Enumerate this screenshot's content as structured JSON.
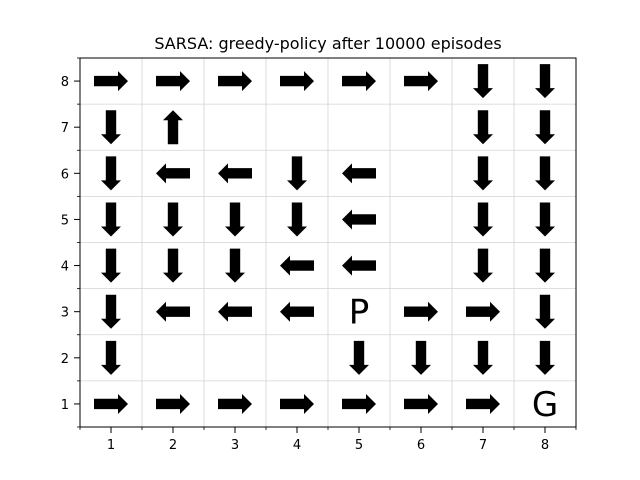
{
  "chart_data": {
    "type": "grid-policy",
    "title": "SARSA: greedy-policy after 10000 episodes",
    "xlabel": "",
    "ylabel": "",
    "x_ticks": [
      "1",
      "2",
      "3",
      "4",
      "5",
      "6",
      "7",
      "8"
    ],
    "y_ticks": [
      "1",
      "2",
      "3",
      "4",
      "5",
      "6",
      "7",
      "8"
    ],
    "xlim": [
      0.5,
      8.5
    ],
    "ylim": [
      0.5,
      8.5
    ],
    "grid": true,
    "arrows": [
      {
        "x": 1,
        "y": 8,
        "dir": "right"
      },
      {
        "x": 2,
        "y": 8,
        "dir": "right"
      },
      {
        "x": 3,
        "y": 8,
        "dir": "right"
      },
      {
        "x": 4,
        "y": 8,
        "dir": "right"
      },
      {
        "x": 5,
        "y": 8,
        "dir": "right"
      },
      {
        "x": 6,
        "y": 8,
        "dir": "right"
      },
      {
        "x": 7,
        "y": 8,
        "dir": "down"
      },
      {
        "x": 8,
        "y": 8,
        "dir": "down"
      },
      {
        "x": 1,
        "y": 7,
        "dir": "down"
      },
      {
        "x": 2,
        "y": 7,
        "dir": "up"
      },
      {
        "x": 7,
        "y": 7,
        "dir": "down"
      },
      {
        "x": 8,
        "y": 7,
        "dir": "down"
      },
      {
        "x": 1,
        "y": 6,
        "dir": "down"
      },
      {
        "x": 2,
        "y": 6,
        "dir": "left"
      },
      {
        "x": 3,
        "y": 6,
        "dir": "left"
      },
      {
        "x": 4,
        "y": 6,
        "dir": "down"
      },
      {
        "x": 5,
        "y": 6,
        "dir": "left"
      },
      {
        "x": 7,
        "y": 6,
        "dir": "down"
      },
      {
        "x": 8,
        "y": 6,
        "dir": "down"
      },
      {
        "x": 1,
        "y": 5,
        "dir": "down"
      },
      {
        "x": 2,
        "y": 5,
        "dir": "down"
      },
      {
        "x": 3,
        "y": 5,
        "dir": "down"
      },
      {
        "x": 4,
        "y": 5,
        "dir": "down"
      },
      {
        "x": 5,
        "y": 5,
        "dir": "left"
      },
      {
        "x": 7,
        "y": 5,
        "dir": "down"
      },
      {
        "x": 8,
        "y": 5,
        "dir": "down"
      },
      {
        "x": 1,
        "y": 4,
        "dir": "down"
      },
      {
        "x": 2,
        "y": 4,
        "dir": "down"
      },
      {
        "x": 3,
        "y": 4,
        "dir": "down"
      },
      {
        "x": 4,
        "y": 4,
        "dir": "left"
      },
      {
        "x": 5,
        "y": 4,
        "dir": "left"
      },
      {
        "x": 7,
        "y": 4,
        "dir": "down"
      },
      {
        "x": 8,
        "y": 4,
        "dir": "down"
      },
      {
        "x": 1,
        "y": 3,
        "dir": "down"
      },
      {
        "x": 2,
        "y": 3,
        "dir": "left"
      },
      {
        "x": 3,
        "y": 3,
        "dir": "left"
      },
      {
        "x": 4,
        "y": 3,
        "dir": "left"
      },
      {
        "x": 6,
        "y": 3,
        "dir": "right"
      },
      {
        "x": 7,
        "y": 3,
        "dir": "right"
      },
      {
        "x": 8,
        "y": 3,
        "dir": "down"
      },
      {
        "x": 1,
        "y": 2,
        "dir": "down"
      },
      {
        "x": 5,
        "y": 2,
        "dir": "down"
      },
      {
        "x": 6,
        "y": 2,
        "dir": "down"
      },
      {
        "x": 7,
        "y": 2,
        "dir": "down"
      },
      {
        "x": 8,
        "y": 2,
        "dir": "down"
      },
      {
        "x": 1,
        "y": 1,
        "dir": "right"
      },
      {
        "x": 2,
        "y": 1,
        "dir": "right"
      },
      {
        "x": 3,
        "y": 1,
        "dir": "right"
      },
      {
        "x": 4,
        "y": 1,
        "dir": "right"
      },
      {
        "x": 5,
        "y": 1,
        "dir": "right"
      },
      {
        "x": 6,
        "y": 1,
        "dir": "right"
      },
      {
        "x": 7,
        "y": 1,
        "dir": "right"
      }
    ],
    "markers": [
      {
        "x": 5,
        "y": 3,
        "label": "P"
      },
      {
        "x": 8,
        "y": 1,
        "label": "G"
      }
    ],
    "colors": {
      "arrow": "#000000",
      "grid": "#d3d3d3",
      "axes": "#000000"
    }
  }
}
